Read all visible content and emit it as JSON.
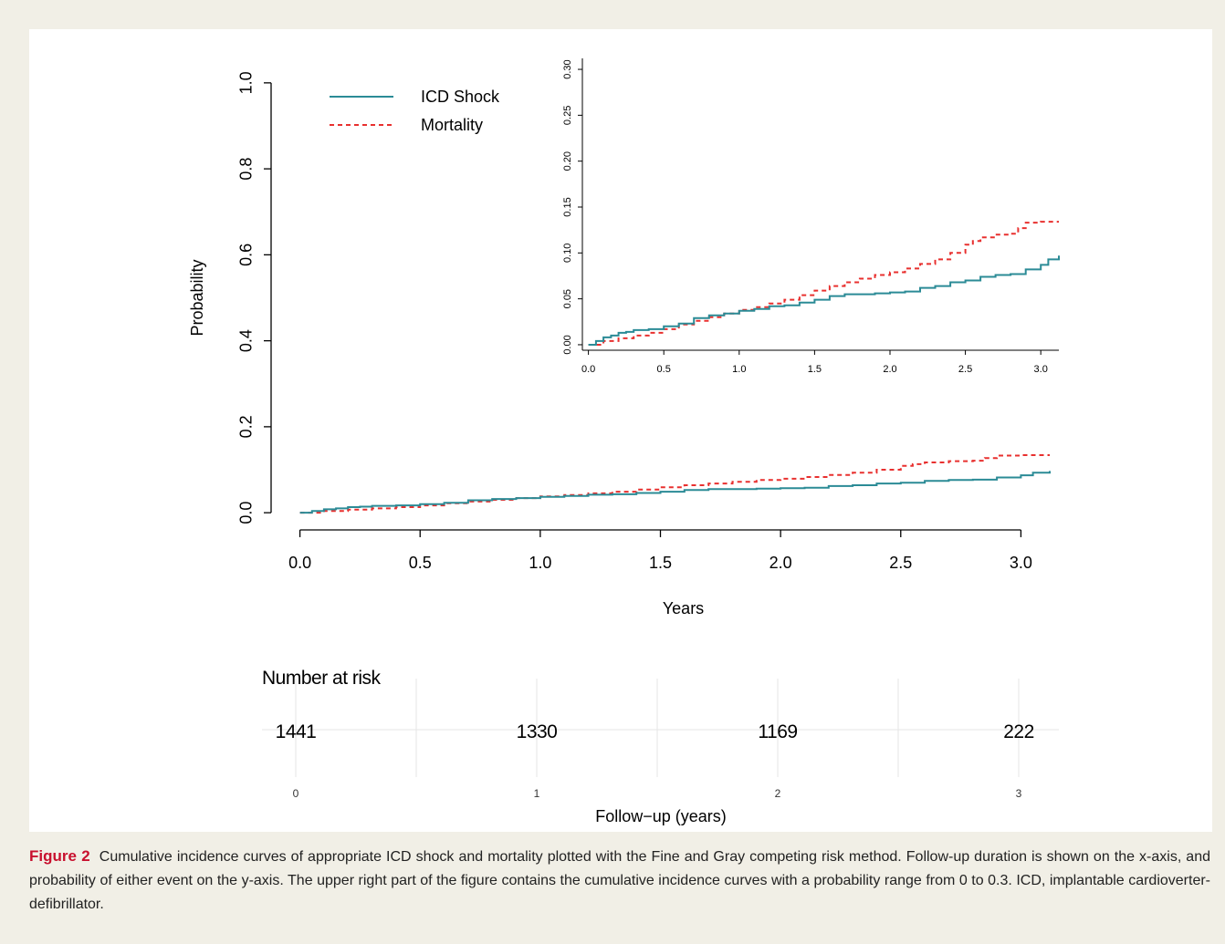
{
  "colors": {
    "page_background": "#f1efe6",
    "panel_background": "#ffffff",
    "icd_shock": "#2b8b96",
    "mortality": "#e8302f",
    "caption_label": "#c8102e",
    "risk_grid": "#e6e6e6"
  },
  "chart_data": [
    {
      "type": "line",
      "panel": "main",
      "xlabel": "Years",
      "ylabel": "Probability",
      "xlim": [
        -0.12,
        3.12
      ],
      "ylim": [
        -0.04,
        1.04
      ],
      "xticks": [
        "0.0",
        "0.5",
        "1.0",
        "1.5",
        "2.0",
        "2.5",
        "3.0"
      ],
      "yticks": [
        "0.0",
        "0.2",
        "0.4",
        "0.6",
        "0.8",
        "1.0"
      ],
      "legend_position": "top-left",
      "series": [
        {
          "name": "ICD Shock",
          "style": "solid step",
          "x": [
            0.0,
            0.05,
            0.1,
            0.15,
            0.2,
            0.25,
            0.3,
            0.4,
            0.5,
            0.6,
            0.7,
            0.8,
            0.9,
            1.0,
            1.1,
            1.2,
            1.3,
            1.4,
            1.5,
            1.6,
            1.7,
            1.8,
            1.9,
            2.0,
            2.1,
            2.2,
            2.3,
            2.4,
            2.5,
            2.6,
            2.7,
            2.8,
            2.9,
            3.0,
            3.05,
            3.12
          ],
          "y": [
            0.0,
            0.004,
            0.008,
            0.01,
            0.013,
            0.014,
            0.016,
            0.017,
            0.02,
            0.023,
            0.029,
            0.032,
            0.034,
            0.037,
            0.039,
            0.042,
            0.043,
            0.046,
            0.049,
            0.053,
            0.055,
            0.055,
            0.056,
            0.057,
            0.058,
            0.062,
            0.064,
            0.068,
            0.07,
            0.074,
            0.076,
            0.077,
            0.082,
            0.087,
            0.093,
            0.097
          ]
        },
        {
          "name": "Mortality",
          "style": "dashed step",
          "x": [
            0.0,
            0.1,
            0.2,
            0.3,
            0.4,
            0.5,
            0.6,
            0.7,
            0.8,
            0.9,
            1.0,
            1.1,
            1.2,
            1.3,
            1.4,
            1.5,
            1.6,
            1.7,
            1.8,
            1.9,
            2.0,
            2.1,
            2.2,
            2.3,
            2.4,
            2.5,
            2.55,
            2.6,
            2.7,
            2.8,
            2.85,
            2.9,
            3.0,
            3.12
          ],
          "y": [
            0.0,
            0.004,
            0.007,
            0.01,
            0.013,
            0.017,
            0.022,
            0.026,
            0.03,
            0.034,
            0.038,
            0.041,
            0.045,
            0.049,
            0.054,
            0.059,
            0.064,
            0.068,
            0.072,
            0.076,
            0.079,
            0.083,
            0.088,
            0.093,
            0.1,
            0.109,
            0.113,
            0.117,
            0.12,
            0.121,
            0.127,
            0.133,
            0.134,
            0.134
          ]
        }
      ]
    },
    {
      "type": "line",
      "panel": "inset",
      "xlim": [
        -0.04,
        3.12
      ],
      "ylim": [
        -0.006,
        0.306
      ],
      "xticks": [
        "0.0",
        "0.5",
        "1.0",
        "1.5",
        "2.0",
        "2.5",
        "3.0"
      ],
      "yticks": [
        "0.00",
        "0.05",
        "0.10",
        "0.15",
        "0.20",
        "0.25",
        "0.30"
      ],
      "series_note": "same series as main panel"
    }
  ],
  "legend": [
    {
      "label": "ICD Shock",
      "series": 0
    },
    {
      "label": "Mortality",
      "series": 1
    }
  ],
  "risk_table": {
    "title": "Number at risk",
    "xlabel": "Follow−up (years)",
    "times": [
      "0",
      "1",
      "2",
      "3"
    ],
    "counts": [
      "1441",
      "1330",
      "1169",
      "222"
    ]
  },
  "caption": {
    "label": "Figure 2",
    "text": "Cumulative incidence curves of appropriate ICD shock and mortality plotted with the Fine and Gray competing risk method. Follow-up duration is shown on the x-axis, and probability of either event on the y-axis. The upper right part of the figure contains the cumulative incidence curves with a probability range from 0 to 0.3. ICD, implantable cardioverter-defibrillator."
  }
}
